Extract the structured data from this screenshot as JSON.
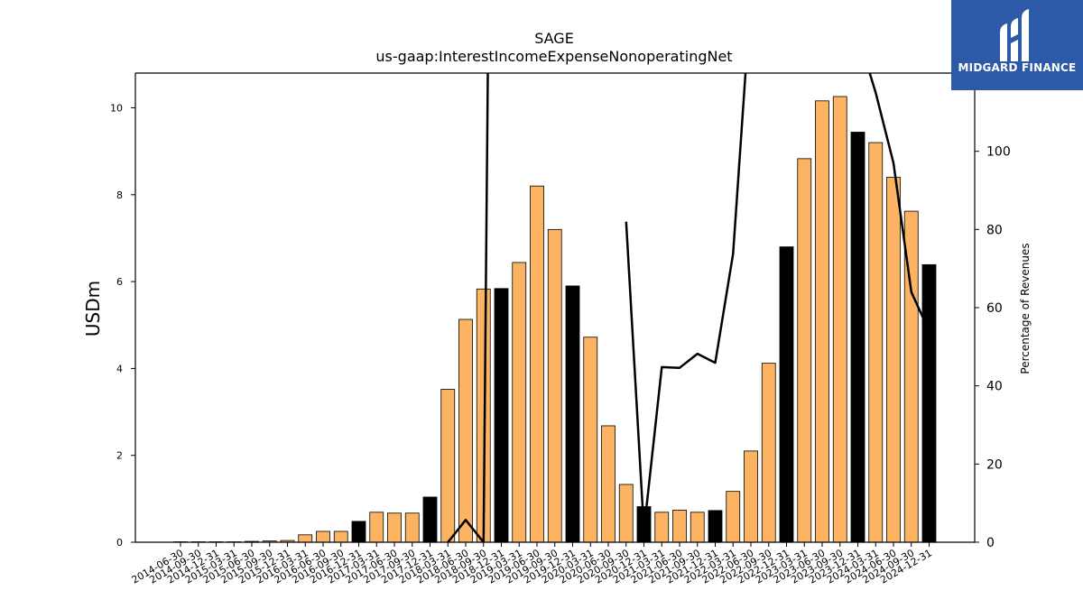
{
  "chart_data": {
    "type": "bar",
    "title": "SAGE",
    "subtitle": "us-gaap:InterestIncomeExpenseNonoperatingNet",
    "ylabel": "USDm",
    "y2label": "Percentage of Revenues",
    "ylim": [
      0,
      10.8
    ],
    "y2lim": [
      0,
      120
    ],
    "yticks": [
      0,
      2,
      4,
      6,
      8,
      10
    ],
    "y2ticks": [
      0,
      20,
      40,
      60,
      80,
      100
    ],
    "categories": [
      "2014-06-30",
      "2014-09-30",
      "2014-12-31",
      "2015-03-31",
      "2015-06-30",
      "2015-09-30",
      "2015-12-31",
      "2016-03-31",
      "2016-06-30",
      "2016-09-30",
      "2016-12-31",
      "2017-03-31",
      "2017-06-30",
      "2017-09-30",
      "2017-12-31",
      "2018-03-31",
      "2018-06-30",
      "2018-09-30",
      "2018-12-31",
      "2019-03-31",
      "2019-06-30",
      "2019-09-30",
      "2019-12-31",
      "2020-03-31",
      "2020-06-30",
      "2020-09-30",
      "2020-12-31",
      "2021-03-31",
      "2021-06-30",
      "2021-09-30",
      "2021-12-31",
      "2022-03-31",
      "2022-06-30",
      "2022-09-30",
      "2022-12-31",
      "2023-03-31",
      "2023-06-30",
      "2023-09-30",
      "2023-12-31",
      "2024-03-31",
      "2024-06-30",
      "2024-09-30",
      "2024-12-31"
    ],
    "values": [
      0.01,
      0.01,
      0.01,
      0.01,
      0.02,
      0.03,
      0.04,
      0.17,
      0.25,
      0.25,
      0.48,
      0.69,
      0.67,
      0.67,
      1.04,
      3.52,
      5.13,
      5.83,
      5.84,
      6.44,
      8.2,
      7.2,
      5.9,
      4.72,
      2.68,
      1.33,
      0.82,
      0.69,
      0.74,
      0.69,
      0.73,
      1.17,
      2.1,
      4.12,
      6.8,
      8.83,
      10.16,
      10.26,
      9.44,
      9.2,
      8.4,
      7.62,
      6.39
    ],
    "fiscal_year_end": [
      false,
      false,
      false,
      false,
      false,
      false,
      false,
      false,
      false,
      false,
      true,
      false,
      false,
      false,
      true,
      false,
      false,
      false,
      true,
      false,
      false,
      false,
      true,
      false,
      false,
      false,
      true,
      false,
      false,
      false,
      true,
      false,
      false,
      false,
      true,
      false,
      false,
      false,
      true,
      false,
      false,
      false,
      true
    ],
    "pct_of_revenues": [
      null,
      null,
      null,
      null,
      null,
      null,
      null,
      null,
      null,
      null,
      null,
      null,
      null,
      null,
      null,
      0,
      5.7,
      0,
      500,
      null,
      null,
      null,
      null,
      null,
      null,
      82,
      3,
      44.8,
      44.6,
      48.2,
      45.9,
      73.8,
      140,
      null,
      null,
      null,
      null,
      null,
      130,
      115,
      97,
      64,
      54
    ],
    "colors": {
      "bar": "#fdb462",
      "bar_fiscal_year": "#000000",
      "line": "#000000"
    },
    "grid": false
  },
  "logo": {
    "text": "MIDGARD FINANCE",
    "color": "#2c5aa8"
  }
}
